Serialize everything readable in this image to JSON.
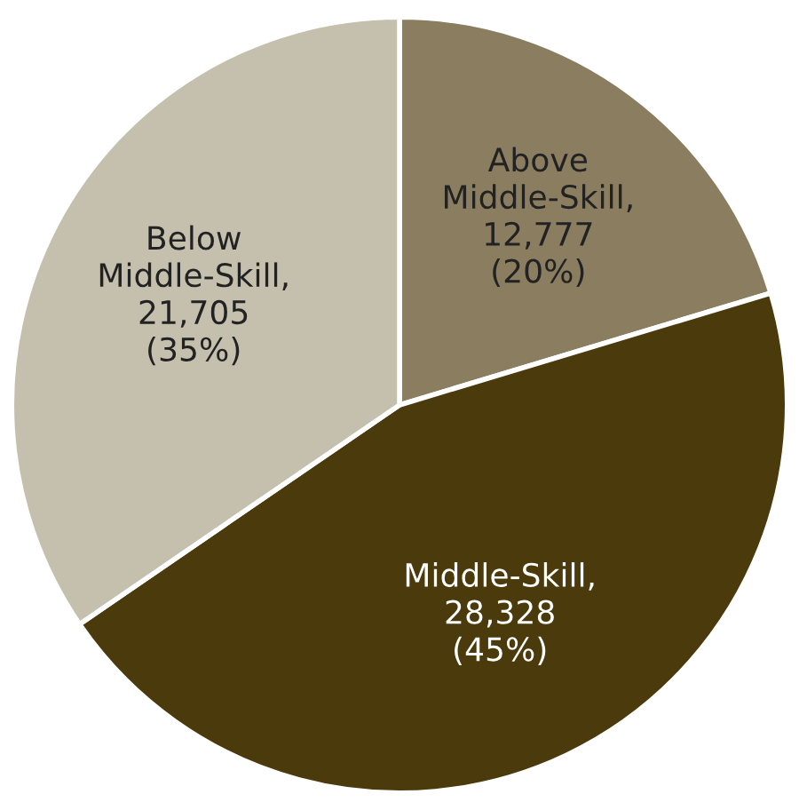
{
  "chart_data": {
    "type": "pie",
    "categories": [
      "Above\nMiddle-Skill",
      "Middle-Skill",
      "Below\nMiddle-Skill"
    ],
    "values": [
      12777,
      28328,
      21705
    ],
    "value_labels": [
      ",\n12,777\n(20%)",
      ",\n28,328\n(45%)",
      ",\n21,705\n(35%)"
    ],
    "colors": [
      "#8b7e60",
      "#4b3a0b",
      "#c5c0ae"
    ],
    "legend": false
  }
}
